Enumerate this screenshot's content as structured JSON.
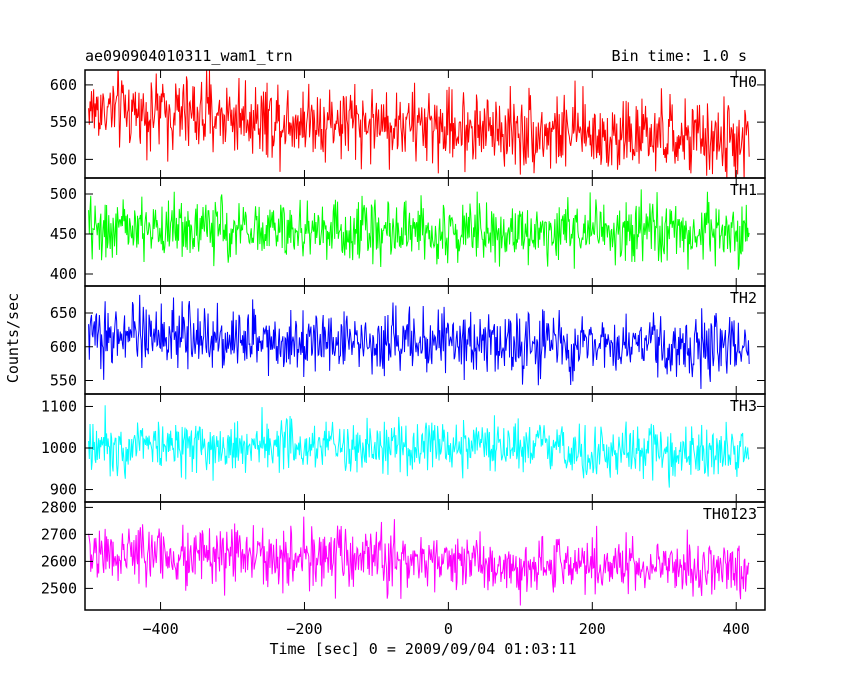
{
  "header": {
    "left": "ae090904010311_wam1_trn",
    "right": "Bin time: 1.0 s"
  },
  "chart_data": {
    "type": "line",
    "title": "ae090904010311_wam1_trn",
    "subtitle": "Bin time: 1.0 s",
    "xlabel": "Time [sec] 0 = 2009/09/04 01:03:11",
    "ylabel": "Counts/sec",
    "xlim": [
      -505,
      440
    ],
    "x_ticks": [
      -400,
      -200,
      0,
      200,
      400
    ],
    "x_start": -500,
    "x_end": 418,
    "x_step": 1,
    "grid": false,
    "panels": [
      {
        "name": "TH0",
        "color": "#ff0000",
        "mean": 533,
        "sd": 26,
        "ylim": [
          475,
          620
        ],
        "y_ticks": [
          500,
          550,
          600
        ],
        "bump_start": 35,
        "bump_end": -10
      },
      {
        "name": "TH1",
        "color": "#00ff00",
        "mean": 452,
        "sd": 19,
        "ylim": [
          385,
          520
        ],
        "y_ticks": [
          400,
          450,
          500
        ],
        "bump_start": 5,
        "bump_end": 0
      },
      {
        "name": "TH2",
        "color": "#0000ff",
        "mean": 603,
        "sd": 23,
        "ylim": [
          530,
          690
        ],
        "y_ticks": [
          550,
          600,
          650
        ],
        "bump_start": 15,
        "bump_end": -5
      },
      {
        "name": "TH3",
        "color": "#00ffff",
        "mean": 992,
        "sd": 33,
        "ylim": [
          870,
          1130
        ],
        "y_ticks": [
          900,
          1000,
          1100
        ],
        "bump_start": 20,
        "bump_end": -5
      },
      {
        "name": "TH0123",
        "color": "#ff00ff",
        "mean": 2580,
        "sd": 55,
        "ylim": [
          2420,
          2820
        ],
        "y_ticks": [
          2500,
          2600,
          2700,
          2800
        ],
        "bump_start": 50,
        "bump_end": -10
      }
    ]
  }
}
